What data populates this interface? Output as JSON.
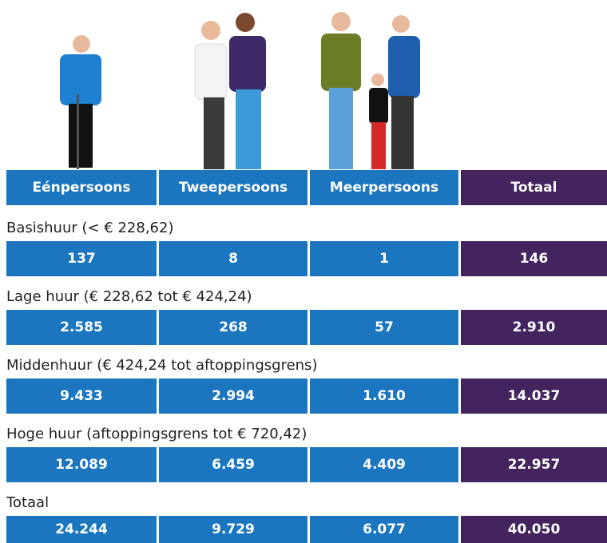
{
  "header": {
    "columns": [
      "Eénpersoons",
      "Tweepersoons",
      "Meerpersoons",
      "Totaal"
    ]
  },
  "sections": [
    {
      "label": "Basishuur (< € 228,62)",
      "values": [
        "137",
        "8",
        "1",
        "146"
      ]
    },
    {
      "label": "Lage huur (€ 228,62 tot € 424,24)",
      "values": [
        "2.585",
        "268",
        "57",
        "2.910"
      ]
    },
    {
      "label": "Middenhuur (€ 424,24 tot aftoppingsgrens)",
      "values": [
        "9.433",
        "2.994",
        "1.610",
        "14.037"
      ]
    },
    {
      "label": "Hoge huur (aftoppingsgrens tot € 720,42)",
      "values": [
        "12.089",
        "6.459",
        "4.409",
        "22.957"
      ]
    },
    {
      "label": "Totaal",
      "values": [
        "24.244",
        "9.729",
        "6.077",
        "40.050"
      ]
    }
  ]
}
